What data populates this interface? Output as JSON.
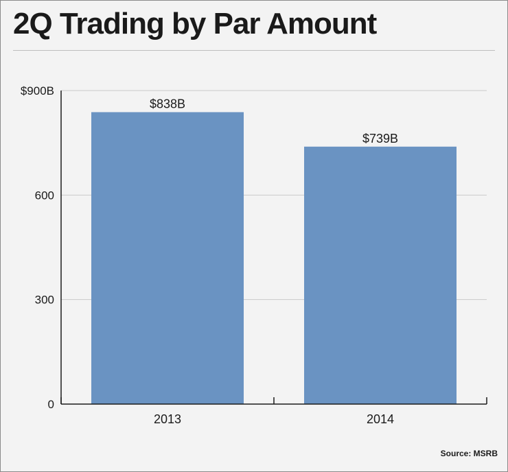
{
  "chart_data": {
    "type": "bar",
    "title": "2Q Trading by Par Amount",
    "categories": [
      "2013",
      "2014"
    ],
    "values": [
      838,
      739
    ],
    "value_labels": [
      "$838B",
      "$739B"
    ],
    "ylim": [
      0,
      900
    ],
    "yticks": [
      0,
      300,
      600,
      900
    ],
    "ytick_labels": [
      "0",
      "300",
      "600",
      "$900B"
    ],
    "xlabel": "",
    "ylabel": "",
    "grid": true,
    "bar_color": "#6a93c2",
    "source": "Source: MSRB"
  }
}
